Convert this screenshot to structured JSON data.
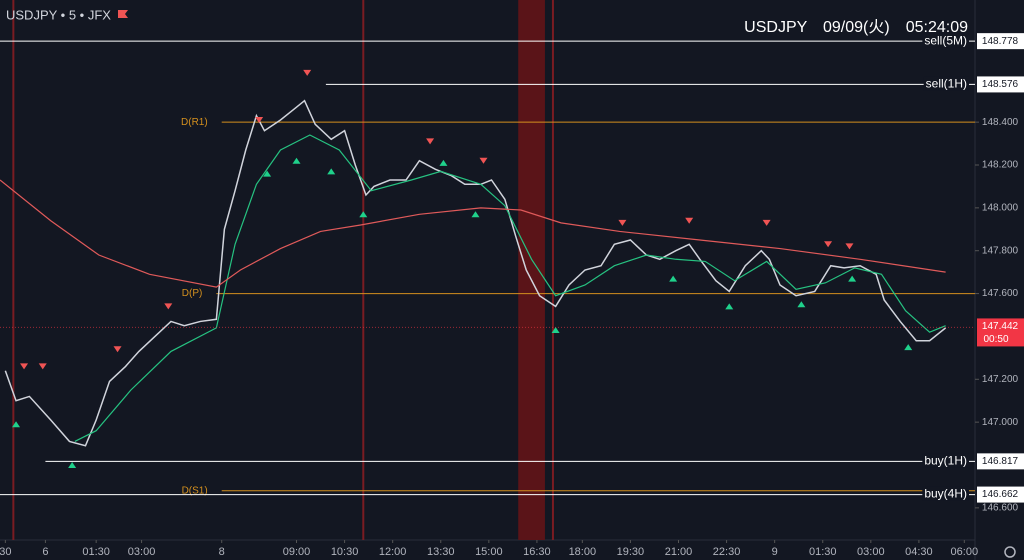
{
  "chart_data": {
    "type": "line",
    "header": {
      "symbol": "USDJPY • 5 • JFX",
      "clock": "USDJPY　09/09(火)　05:24:09"
    },
    "xlim": [
      0,
      365
    ],
    "ylim": [
      146.45,
      148.97
    ],
    "yticks": [
      {
        "value": 148.4,
        "label": "148.400"
      },
      {
        "value": 148.2,
        "label": "148.200"
      },
      {
        "value": 148.0,
        "label": "148.000"
      },
      {
        "value": 147.8,
        "label": "147.800"
      },
      {
        "value": 147.6,
        "label": "147.600"
      },
      {
        "value": 147.2,
        "label": "147.200"
      },
      {
        "value": 147.0,
        "label": "147.000"
      },
      {
        "value": 146.6,
        "label": "146.600"
      }
    ],
    "xticks": [
      {
        "value": 2,
        "label": "30"
      },
      {
        "value": 17,
        "label": "6"
      },
      {
        "value": 36,
        "label": "01:30"
      },
      {
        "value": 53,
        "label": "03:00"
      },
      {
        "value": 83,
        "label": "8"
      },
      {
        "value": 111,
        "label": "09:00"
      },
      {
        "value": 129,
        "label": "10:30"
      },
      {
        "value": 147,
        "label": "12:00"
      },
      {
        "value": 165,
        "label": "13:30"
      },
      {
        "value": 183,
        "label": "15:00"
      },
      {
        "value": 201,
        "label": "16:30"
      },
      {
        "value": 218,
        "label": "18:00"
      },
      {
        "value": 236,
        "label": "19:30"
      },
      {
        "value": 254,
        "label": "21:00"
      },
      {
        "value": 272,
        "label": "22:30"
      },
      {
        "value": 290,
        "label": "9"
      },
      {
        "value": 308,
        "label": "01:30"
      },
      {
        "value": 326,
        "label": "03:00"
      },
      {
        "value": 344,
        "label": "04:30"
      },
      {
        "value": 361,
        "label": "06:00"
      }
    ],
    "series": [
      {
        "color": "#d1d4dc",
        "x": [
          2,
          6,
          11,
          19,
          26,
          32,
          36,
          41,
          47,
          52,
          58,
          64,
          69,
          75,
          81,
          84,
          88,
          92,
          96,
          99,
          105,
          110,
          114,
          118,
          124,
          129,
          133,
          137,
          140,
          146,
          152,
          157,
          163,
          169,
          174,
          180,
          184,
          189,
          193,
          197,
          202,
          208,
          213,
          219,
          225,
          230,
          236,
          242,
          247,
          253,
          258,
          262,
          268,
          273,
          279,
          285,
          288,
          292,
          298,
          305,
          311,
          316,
          322,
          328,
          331,
          337,
          343,
          348,
          354
        ],
        "values": [
          147.24,
          147.1,
          147.12,
          147.01,
          146.91,
          146.89,
          147.01,
          147.19,
          147.26,
          147.33,
          147.4,
          147.47,
          147.45,
          147.47,
          147.48,
          147.9,
          148.08,
          148.27,
          148.43,
          148.36,
          148.41,
          148.46,
          148.5,
          148.39,
          148.32,
          148.36,
          148.2,
          148.06,
          148.1,
          148.13,
          148.13,
          148.22,
          148.18,
          148.15,
          148.11,
          148.11,
          148.13,
          148.04,
          147.87,
          147.71,
          147.59,
          147.54,
          147.64,
          147.71,
          147.73,
          147.83,
          147.85,
          147.78,
          147.76,
          147.8,
          147.83,
          147.76,
          147.66,
          147.61,
          147.73,
          147.8,
          147.76,
          147.64,
          147.59,
          147.61,
          147.73,
          147.72,
          147.73,
          147.69,
          147.57,
          147.47,
          147.38,
          147.38,
          147.44
        ]
      },
      {
        "color": "#26c281",
        "x": [
          28,
          36,
          49,
          64,
          81,
          88,
          96,
          105,
          116,
          127,
          139,
          154,
          165,
          180,
          189,
          199,
          208,
          219,
          230,
          242,
          253,
          264,
          275,
          287,
          298,
          309,
          320,
          330,
          339,
          348,
          354
        ],
        "values": [
          146.91,
          146.96,
          147.15,
          147.33,
          147.44,
          147.83,
          148.11,
          148.27,
          148.34,
          148.27,
          148.08,
          148.13,
          148.17,
          148.11,
          148.01,
          147.76,
          147.59,
          147.64,
          147.73,
          147.78,
          147.76,
          147.75,
          147.66,
          147.75,
          147.62,
          147.65,
          147.72,
          147.69,
          147.52,
          147.42,
          147.45
        ]
      },
      {
        "color": "#e05a5a",
        "x": [
          0,
          19,
          37,
          56,
          81,
          90,
          105,
          120,
          135,
          157,
          180,
          195,
          210,
          232,
          262,
          292,
          322,
          354
        ],
        "values": [
          148.13,
          147.94,
          147.78,
          147.69,
          147.63,
          147.71,
          147.81,
          147.89,
          147.92,
          147.97,
          148.0,
          147.99,
          147.93,
          147.89,
          147.85,
          147.81,
          147.76,
          147.7
        ]
      }
    ],
    "sell_signals": {
      "color": "#f05454",
      "x": [
        9,
        16,
        44,
        63,
        97,
        115,
        161,
        181,
        233,
        258,
        287,
        310,
        318
      ],
      "values": [
        147.26,
        147.26,
        147.34,
        147.54,
        148.41,
        148.63,
        148.31,
        148.22,
        147.93,
        147.94,
        147.93,
        147.83,
        147.82
      ]
    },
    "buy_signals": {
      "color": "#1fd18b",
      "x": [
        6,
        27,
        100,
        111,
        124,
        136,
        166,
        178,
        208,
        252,
        273,
        300,
        319,
        340
      ],
      "values": [
        146.99,
        146.8,
        148.16,
        148.22,
        148.17,
        147.97,
        148.21,
        147.97,
        147.43,
        147.67,
        147.54,
        147.55,
        147.67,
        147.35
      ]
    },
    "levels": [
      {
        "label": "sell(5M)",
        "value": 148.778,
        "color": "#ffffff",
        "start": 0,
        "boxed": true
      },
      {
        "label": "sell(1H)",
        "value": 148.576,
        "color": "#ffffff",
        "start": 122,
        "boxed": true
      },
      {
        "label": "D(R1)",
        "value": 148.4,
        "color": "#d4901e",
        "start": 83,
        "boxed": false
      },
      {
        "label": "D(P)",
        "value": 147.6,
        "color": "#d4901e",
        "start": 81,
        "boxed": false
      },
      {
        "label": "buy(1H)",
        "value": 146.817,
        "color": "#ffffff",
        "start": 17,
        "boxed": true
      },
      {
        "label": "D(S1)",
        "value": 146.68,
        "color": "#d4901e",
        "start": 83,
        "boxed": false
      },
      {
        "label": "buy(4H)",
        "value": 146.662,
        "color": "#ffffff",
        "start": 0,
        "boxed": true
      }
    ],
    "last_price": {
      "value": 147.442,
      "timer": "00:50",
      "color": "#f23645"
    },
    "event_lines": {
      "color": "#7a1c22",
      "x": [
        5,
        136,
        207
      ]
    },
    "event_band": {
      "color": "#5a1418",
      "x": [
        194,
        204
      ]
    }
  }
}
